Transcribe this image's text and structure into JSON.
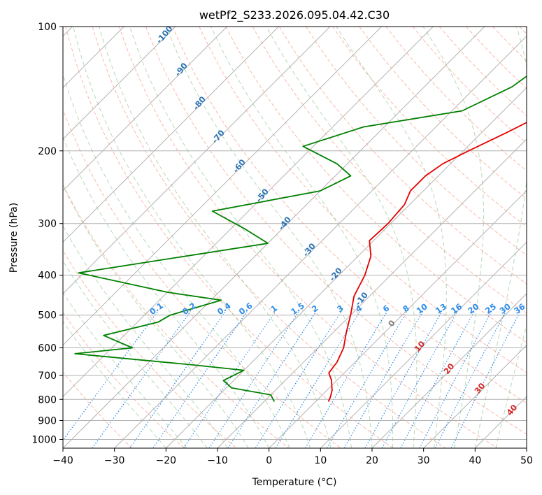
{
  "chart_data": {
    "type": "line",
    "title": "wetPf2_S233.2026.095.04.42.C30",
    "xlabel": "Temperature (°C)",
    "ylabel": "Pressure (hPa)",
    "xlim": [
      -40,
      50
    ],
    "ylim": [
      1050,
      100
    ],
    "y_scale": "log",
    "x_ticks": [
      "−40",
      "−30",
      "−20",
      "−10",
      "0",
      "10",
      "20",
      "30",
      "40",
      "50"
    ],
    "x_tick_values": [
      -40,
      -30,
      -20,
      -10,
      0,
      10,
      20,
      30,
      40,
      50
    ],
    "y_ticks": [
      "100",
      "200",
      "300",
      "400",
      "500",
      "600",
      "700",
      "800",
      "900",
      "1000"
    ],
    "y_tick_values": [
      100,
      200,
      300,
      400,
      500,
      600,
      700,
      800,
      900,
      1000
    ],
    "grid": true,
    "skew": true,
    "series": [
      {
        "color": "#e50000",
        "points": [
          [
            -3.2,
            100
          ],
          [
            -3.5,
            110
          ],
          [
            -5,
            125
          ],
          [
            -7.5,
            140
          ],
          [
            -11,
            160
          ],
          [
            -15,
            180
          ],
          [
            -19,
            200
          ],
          [
            -21.5,
            215
          ],
          [
            -22.5,
            230
          ],
          [
            -22.5,
            250
          ],
          [
            -21,
            270
          ],
          [
            -20.5,
            300
          ],
          [
            -20.8,
            330
          ],
          [
            -17.5,
            360
          ],
          [
            -15,
            400
          ],
          [
            -13,
            450
          ],
          [
            -10,
            500
          ],
          [
            -7.5,
            550
          ],
          [
            -5,
            600
          ],
          [
            -3.5,
            650
          ],
          [
            -3,
            690
          ],
          [
            -1,
            720
          ],
          [
            0,
            740
          ],
          [
            1,
            760
          ],
          [
            2,
            790
          ],
          [
            2.5,
            810
          ]
        ]
      },
      {
        "color": "#008000",
        "points": [
          [
            -4,
            100
          ],
          [
            -13,
            120
          ],
          [
            -22,
            130
          ],
          [
            -23,
            140
          ],
          [
            -28,
            160
          ],
          [
            -44,
            175
          ],
          [
            -52,
            195
          ],
          [
            -42,
            215
          ],
          [
            -37,
            230
          ],
          [
            -40,
            250
          ],
          [
            -57,
            280
          ],
          [
            -47,
            310
          ],
          [
            -40,
            335
          ],
          [
            -71,
            395
          ],
          [
            -50,
            440
          ],
          [
            -38,
            460
          ],
          [
            -45,
            500
          ],
          [
            -46,
            520
          ],
          [
            -54,
            560
          ],
          [
            -46,
            600
          ],
          [
            -56,
            620
          ],
          [
            -31,
            660
          ],
          [
            -20,
            680
          ],
          [
            -22,
            720
          ],
          [
            -19,
            750
          ],
          [
            -10,
            780
          ],
          [
            -8,
            810
          ]
        ]
      }
    ],
    "mixing_ratio_labels": [
      "0.1",
      "0.2",
      "0.4",
      "0.6",
      "1",
      "1.5",
      "2",
      "3",
      "4",
      "6",
      "8",
      "10",
      "13",
      "16",
      "20",
      "25",
      "30",
      "36"
    ],
    "mixing_ratio_values": [
      0.1,
      0.2,
      0.4,
      0.6,
      1,
      1.5,
      2,
      3,
      4,
      6,
      8,
      10,
      13,
      16,
      20,
      25,
      30,
      36
    ],
    "dry_adiabat_labels": [
      "-100",
      "-90",
      "-80",
      "-70",
      "-60",
      "-50",
      "-40",
      "-30",
      "-20",
      "-10"
    ],
    "moist_adiabat_labels": [
      "0",
      "10",
      "20",
      "30",
      "40"
    ]
  }
}
